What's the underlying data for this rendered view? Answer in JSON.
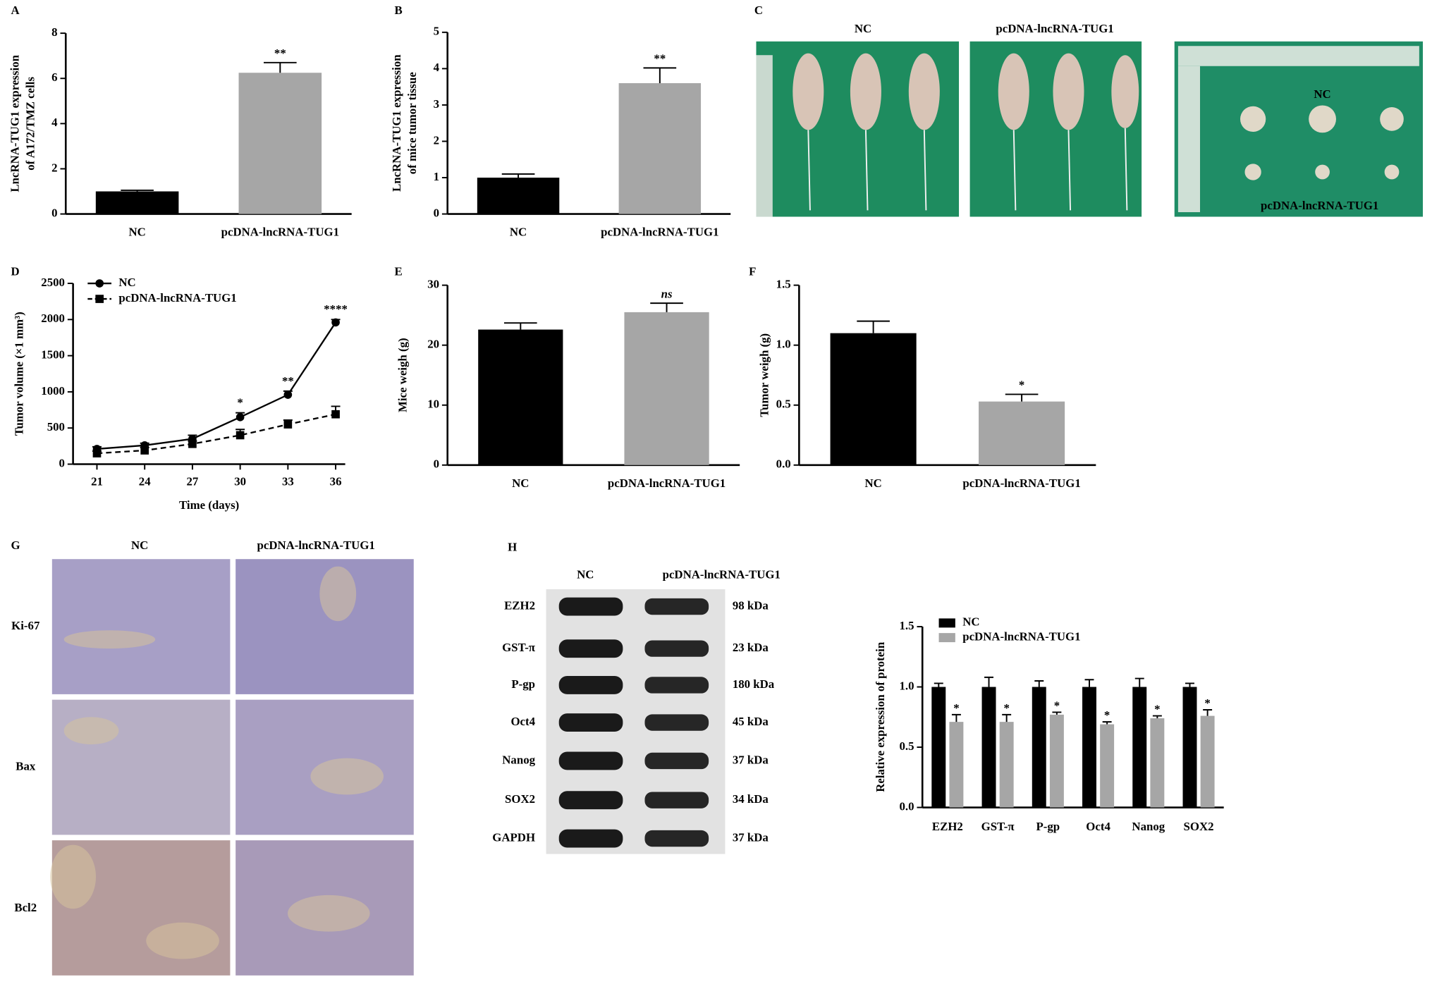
{
  "chart_data": [
    {
      "type": "bar",
      "panel": "A",
      "ylabel": [
        "LncRNA-TUG1 expression",
        "of A172/TMZ cells"
      ],
      "categories": [
        "NC",
        "pcDNA-lncRNA-TUG1"
      ],
      "values": [
        1.0,
        6.25
      ],
      "errors": [
        0.05,
        0.45
      ],
      "annotations": [
        null,
        "**"
      ],
      "colors": [
        "#000000",
        "#a6a6a6"
      ],
      "ylim": [
        0,
        8
      ],
      "yticks": [
        0,
        2,
        4,
        6,
        8
      ]
    },
    {
      "type": "bar",
      "panel": "B",
      "ylabel": [
        "LncRNA-TUG1 expression",
        "of mice tumor tissue"
      ],
      "categories": [
        "NC",
        "pcDNA-lncRNA-TUG1"
      ],
      "values": [
        1.0,
        3.6
      ],
      "errors": [
        0.1,
        0.42
      ],
      "annotations": [
        null,
        "**"
      ],
      "colors": [
        "#000000",
        "#a6a6a6"
      ],
      "ylim": [
        0,
        5
      ],
      "yticks": [
        0,
        1,
        2,
        3,
        4,
        5
      ]
    },
    {
      "type": "line",
      "panel": "D",
      "xlabel": "Time (days)",
      "ylabel": [
        "Tumor volume (×1 mm³)"
      ],
      "x": [
        21,
        24,
        27,
        30,
        33,
        36
      ],
      "xlim": [
        19.5,
        36.6
      ],
      "xticks": [
        21,
        24,
        27,
        30,
        33,
        36
      ],
      "ylim": [
        0,
        2500
      ],
      "yticks": [
        0,
        500,
        1000,
        1500,
        2000,
        2500
      ],
      "series": [
        {
          "name": "NC",
          "color": "#000000",
          "marker": "circle",
          "dashed": false,
          "values": [
            210,
            260,
            350,
            650,
            960,
            1960
          ],
          "errors": [
            30,
            30,
            50,
            60,
            50,
            40
          ]
        },
        {
          "name": "pcDNA-lncRNA-TUG1",
          "color": "#000000",
          "marker": "square",
          "dashed": true,
          "values": [
            150,
            190,
            280,
            400,
            550,
            690
          ],
          "errors": [
            30,
            40,
            40,
            80,
            60,
            110
          ]
        }
      ],
      "annotations": [
        null,
        null,
        null,
        "*",
        "**",
        "****"
      ]
    },
    {
      "type": "bar",
      "panel": "E",
      "ylabel": [
        "Mice weigh (g)"
      ],
      "categories": [
        "NC",
        "pcDNA-lncRNA-TUG1"
      ],
      "values": [
        22.6,
        25.5
      ],
      "errors": [
        1.1,
        1.5
      ],
      "annotations": [
        null,
        "ns"
      ],
      "colors": [
        "#000000",
        "#a6a6a6"
      ],
      "ylim": [
        0,
        30
      ],
      "yticks": [
        0,
        10,
        20,
        30
      ]
    },
    {
      "type": "bar",
      "panel": "F",
      "ylabel": [
        "Tumor weigh (g)"
      ],
      "categories": [
        "NC",
        "pcDNA-lncRNA-TUG1"
      ],
      "values": [
        1.1,
        0.53
      ],
      "errors": [
        0.1,
        0.06
      ],
      "annotations": [
        null,
        "*"
      ],
      "colors": [
        "#000000",
        "#a6a6a6"
      ],
      "ylim": [
        0,
        1.5
      ],
      "yticks": [
        {
          "value": 0,
          "label": "0.0"
        },
        0.5,
        {
          "value": 1,
          "label": "1.0"
        },
        1.5
      ]
    },
    {
      "type": "grouped-bar",
      "ylabel": [
        "Relative expression of protein"
      ],
      "categories": [
        "EZH2",
        "GST-π",
        "P-gp",
        "Oct4",
        "Nanog",
        "SOX2"
      ],
      "series": [
        {
          "name": "NC",
          "color": "#000000",
          "values": [
            1,
            1,
            1,
            1,
            1,
            1
          ],
          "errors": [
            0.03,
            0.08,
            0.05,
            0.06,
            0.07,
            0.03
          ]
        },
        {
          "name": "pcDNA-lncRNA-TUG1",
          "color": "#a6a6a6",
          "values": [
            0.71,
            0.71,
            0.77,
            0.69,
            0.74,
            0.76
          ],
          "errors": [
            0.06,
            0.06,
            0.02,
            0.02,
            0.02,
            0.05
          ],
          "annotations": [
            "*",
            "*",
            "*",
            "*",
            "*",
            "*"
          ]
        }
      ],
      "ylim": [
        0,
        1.5
      ],
      "yticks": [
        {
          "value": 0,
          "label": "0.0"
        },
        0.5,
        {
          "value": 1,
          "label": "1.0"
        },
        1.5
      ]
    }
  ],
  "photo_panels": {
    "C": {
      "panel": "C",
      "col1": "NC",
      "col2": "pcDNA-lncRNA-TUG1",
      "tumor_top": "NC",
      "tumor_bottom": "pcDNA-lncRNA-TUG1"
    },
    "G": {
      "panel": "G",
      "columns": [
        "NC",
        "pcDNA-lncRNA-TUG1"
      ],
      "rows": [
        "Ki-67",
        "Bax",
        "Bcl2"
      ]
    },
    "H": {
      "panel": "H",
      "columns": [
        "NC",
        "pcDNA-lncRNA-TUG1"
      ],
      "proteins": [
        "EZH2",
        "GST-π",
        "P-gp",
        "Oct4",
        "Nanog",
        "SOX2",
        "GAPDH"
      ],
      "sizes": [
        "98 kDa",
        "23 kDa",
        "180 kDa",
        "45 kDa",
        "37 kDa",
        "34 kDa",
        "37 kDa"
      ]
    }
  }
}
